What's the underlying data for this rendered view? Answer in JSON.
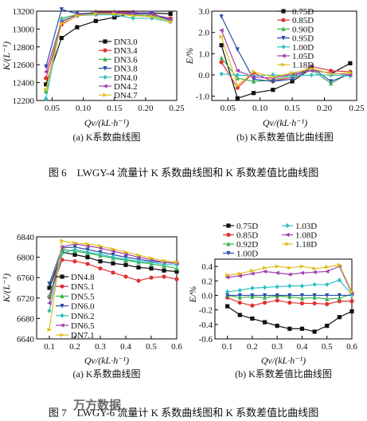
{
  "figures": [
    {
      "caption": "图 6　LWGY-4 流量计 K 系数曲线图和 K 系数差值比曲线图"
    },
    {
      "caption": "图 7　LWGY-6 流量计 K 系数曲线图和 K 系数差值比曲线图"
    }
  ],
  "watermark": "万方数据",
  "chart_data": [
    {
      "id": "fig6a",
      "type": "line",
      "subcaption": "(a) K系数曲线图",
      "ylabel": "K/(L⁻¹)",
      "xlabel": "Qv/(kL·h⁻¹)",
      "xlim": [
        0.025,
        0.25
      ],
      "ylim": [
        12200,
        13200
      ],
      "xticks": [
        0.05,
        0.1,
        0.15,
        0.2,
        0.25
      ],
      "xtick_labels": [
        "0.05",
        "0.10",
        "0.15",
        "0.20",
        "0.25"
      ],
      "yticks": [
        12200,
        12400,
        12600,
        12800,
        13000,
        13200
      ],
      "legend_position": "center-right",
      "x": [
        0.04,
        0.065,
        0.09,
        0.12,
        0.15,
        0.18,
        0.21,
        0.24
      ],
      "series": [
        {
          "name": "DN3.0",
          "color": "#111111",
          "marker": "square",
          "values": [
            12380,
            12900,
            13020,
            13090,
            13130,
            13180,
            13180,
            13170
          ]
        },
        {
          "name": "DN3.4",
          "color": "#e03030",
          "marker": "circle",
          "values": [
            12450,
            13050,
            13150,
            13190,
            13190,
            13190,
            13160,
            13120
          ]
        },
        {
          "name": "DN3.6",
          "color": "#39b54a",
          "marker": "triangle",
          "values": [
            12300,
            13120,
            13160,
            13180,
            13170,
            13160,
            13150,
            13100
          ]
        },
        {
          "name": "DN3.8",
          "color": "#2b4fa8",
          "marker": "triangle-down",
          "values": [
            12580,
            13220,
            13170,
            13180,
            13180,
            13180,
            13180,
            13090
          ]
        },
        {
          "name": "DN4.0",
          "color": "#30c0c0",
          "marker": "diamond",
          "values": [
            12220,
            13100,
            13150,
            13160,
            13160,
            13120,
            13120,
            13080
          ]
        },
        {
          "name": "DN4.2",
          "color": "#a040b0",
          "marker": "triangle-left",
          "values": [
            12520,
            13080,
            13160,
            13170,
            13180,
            13170,
            13170,
            13110
          ]
        },
        {
          "name": "DN4.7",
          "color": "#e0c020",
          "marker": "triangle-right",
          "values": [
            12320,
            13060,
            13150,
            13170,
            13170,
            13150,
            13140,
            13080
          ]
        }
      ]
    },
    {
      "id": "fig6b",
      "type": "line",
      "subcaption": "(b) K系数差值比曲线图",
      "ylabel": "E/%",
      "xlabel": "Qv/(kL·h⁻¹)",
      "xlim": [
        0.025,
        0.25
      ],
      "ylim": [
        -1.2,
        3.0
      ],
      "xticks": [
        0.05,
        0.1,
        0.15,
        0.2,
        0.25
      ],
      "xtick_labels": [
        "0.05",
        "0.10",
        "0.15",
        "0.20",
        "0.25"
      ],
      "yticks": [
        -1.0,
        0.0,
        1.0,
        2.0,
        3.0
      ],
      "ytick_labels": [
        "-1.0",
        "0.0",
        "1.0",
        "2.0",
        "3.0"
      ],
      "legend_position": "top-right",
      "x": [
        0.04,
        0.065,
        0.09,
        0.12,
        0.15,
        0.18,
        0.21,
        0.24
      ],
      "series": [
        {
          "name": "0.75D",
          "color": "#111111",
          "marker": "square",
          "values": [
            1.4,
            -1.1,
            -0.85,
            -0.7,
            -0.3,
            0.3,
            0.05,
            0.55
          ]
        },
        {
          "name": "0.85D",
          "color": "#e03030",
          "marker": "circle",
          "values": [
            0.6,
            -0.6,
            0.1,
            -0.3,
            -0.1,
            0.4,
            0.2,
            0.15
          ]
        },
        {
          "name": "0.90D",
          "color": "#39b54a",
          "marker": "triangle",
          "values": [
            0.8,
            -0.15,
            -0.3,
            -0.25,
            0.0,
            0.25,
            -0.4,
            0.1
          ]
        },
        {
          "name": "0.95D",
          "color": "#2b4fa8",
          "marker": "triangle-down",
          "values": [
            2.75,
            1.2,
            -0.2,
            -0.3,
            -0.2,
            0.35,
            -0.3,
            0.05
          ]
        },
        {
          "name": "1.00D",
          "color": "#30c0c0",
          "marker": "diamond",
          "values": [
            0.05,
            0.0,
            -0.05,
            0.0,
            -0.05,
            0.0,
            0.0,
            -0.05
          ]
        },
        {
          "name": "1.05D",
          "color": "#a040b0",
          "marker": "triangle-left",
          "values": [
            2.1,
            0.2,
            -0.1,
            -0.15,
            0.05,
            0.2,
            0.1,
            0.0
          ]
        },
        {
          "name": "1.18D",
          "color": "#e0c020",
          "marker": "triangle-right",
          "values": [
            1.8,
            -0.5,
            0.15,
            -0.1,
            0.1,
            0.3,
            0.05,
            0.1
          ]
        }
      ]
    },
    {
      "id": "fig7a",
      "type": "line",
      "subcaption": "(a) K系数曲线图",
      "ylabel": "K/(L⁻¹)",
      "xlabel": "Qv/(kL·h⁻¹)",
      "xlim": [
        0.05,
        0.6
      ],
      "ylim": [
        6640,
        6840
      ],
      "xticks": [
        0.1,
        0.2,
        0.3,
        0.4,
        0.5,
        0.6
      ],
      "xtick_labels": [
        "0.1",
        "0.2",
        "0.3",
        "0.4",
        "0.5",
        "0.6"
      ],
      "yticks": [
        6640,
        6680,
        6720,
        6760,
        6800,
        6840
      ],
      "legend_position": "bottom-center",
      "x": [
        0.1,
        0.15,
        0.2,
        0.25,
        0.3,
        0.35,
        0.4,
        0.45,
        0.5,
        0.55,
        0.6
      ],
      "series": [
        {
          "name": "DN4.8",
          "color": "#111111",
          "marker": "square",
          "values": [
            6740,
            6810,
            6805,
            6800,
            6792,
            6788,
            6785,
            6780,
            6778,
            6774,
            6772
          ]
        },
        {
          "name": "DN5.1",
          "color": "#e03030",
          "marker": "circle",
          "values": [
            6722,
            6795,
            6792,
            6787,
            6778,
            6770,
            6762,
            6754,
            6760,
            6762,
            6757
          ]
        },
        {
          "name": "DN5.5",
          "color": "#39b54a",
          "marker": "triangle",
          "values": [
            6725,
            6815,
            6812,
            6808,
            6803,
            6798,
            6794,
            6790,
            6787,
            6783,
            6778
          ]
        },
        {
          "name": "DN6.0",
          "color": "#2b4fa8",
          "marker": "triangle-down",
          "values": [
            6748,
            6818,
            6820,
            6815,
            6810,
            6805,
            6800,
            6796,
            6792,
            6790,
            6788
          ]
        },
        {
          "name": "DN6.2",
          "color": "#30c0c0",
          "marker": "diamond",
          "values": [
            6695,
            6808,
            6815,
            6810,
            6806,
            6800,
            6796,
            6792,
            6790,
            6786,
            6785
          ]
        },
        {
          "name": "DN6.5",
          "color": "#a040b0",
          "marker": "triangle-left",
          "values": [
            6710,
            6820,
            6826,
            6822,
            6818,
            6812,
            6806,
            6800,
            6795,
            6790,
            6788
          ]
        },
        {
          "name": "DN7.1",
          "color": "#e0c020",
          "marker": "triangle-right",
          "values": [
            6658,
            6832,
            6828,
            6826,
            6822,
            6816,
            6810,
            6804,
            6798,
            6793,
            6790
          ]
        }
      ]
    },
    {
      "id": "fig7b",
      "type": "line",
      "subcaption": "(b) K系数差值比曲线图",
      "ylabel": "E/%",
      "xlabel": "Qv/(kL·h⁻¹)",
      "xlim": [
        0.05,
        0.6
      ],
      "ylim": [
        -0.6,
        0.5
      ],
      "xticks": [
        0.1,
        0.2,
        0.3,
        0.4,
        0.5,
        0.6
      ],
      "xtick_labels": [
        "0.1",
        "0.2",
        "0.3",
        "0.4",
        "0.5",
        "0.6"
      ],
      "yticks": [
        -0.6,
        -0.4,
        -0.2,
        0.0,
        0.2,
        0.4
      ],
      "ytick_labels": [
        "-0.6",
        "-0.4",
        "-0.2",
        "0.0",
        "0.2",
        "0.4"
      ],
      "legend_position": "top",
      "x": [
        0.1,
        0.15,
        0.2,
        0.25,
        0.3,
        0.35,
        0.4,
        0.45,
        0.5,
        0.55,
        0.6
      ],
      "series": [
        {
          "name": "0.75D",
          "color": "#111111",
          "marker": "square",
          "values": [
            -0.15,
            -0.27,
            -0.32,
            -0.37,
            -0.42,
            -0.46,
            -0.46,
            -0.5,
            -0.42,
            -0.3,
            -0.22
          ]
        },
        {
          "name": "0.85D",
          "color": "#e03030",
          "marker": "circle",
          "values": [
            -0.03,
            -0.1,
            -0.14,
            -0.1,
            -0.07,
            -0.1,
            -0.11,
            -0.11,
            -0.12,
            -0.08,
            -0.08
          ]
        },
        {
          "name": "0.92D",
          "color": "#39b54a",
          "marker": "triangle",
          "values": [
            0.0,
            -0.03,
            -0.02,
            -0.03,
            -0.01,
            -0.02,
            -0.04,
            -0.03,
            -0.05,
            -0.04,
            0.02
          ]
        },
        {
          "name": "1.00D",
          "color": "#2b4fa8",
          "marker": "triangle-down",
          "values": [
            0.0,
            0.0,
            0.0,
            0.0,
            0.0,
            0.0,
            0.0,
            0.0,
            0.0,
            0.0,
            0.0
          ]
        },
        {
          "name": "1.03D",
          "color": "#30c0c0",
          "marker": "diamond",
          "values": [
            0.05,
            0.07,
            0.1,
            0.11,
            0.12,
            0.13,
            0.13,
            0.15,
            0.15,
            0.21,
            0.01
          ]
        },
        {
          "name": "1.08D",
          "color": "#a040b0",
          "marker": "triangle-left",
          "values": [
            0.25,
            0.27,
            0.3,
            0.33,
            0.31,
            0.29,
            0.31,
            0.32,
            0.33,
            0.4,
            0.03
          ]
        },
        {
          "name": "1.18D",
          "color": "#e0c020",
          "marker": "triangle-right",
          "values": [
            0.28,
            0.3,
            0.34,
            0.38,
            0.4,
            0.38,
            0.4,
            0.37,
            0.39,
            0.42,
            0.05
          ]
        }
      ]
    }
  ]
}
